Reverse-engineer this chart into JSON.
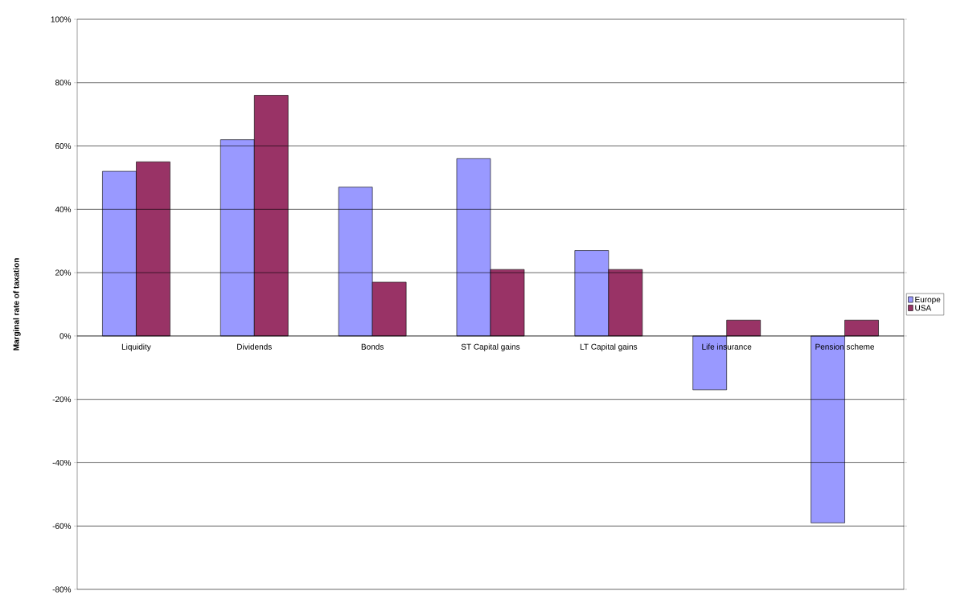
{
  "chart_data": {
    "type": "bar",
    "ylabel": "Marginal rate of taxation",
    "categories": [
      "Liquidity",
      "Dividends",
      "Bonds",
      "ST Capital gains",
      "LT Capital gains",
      "Life insurance",
      "Pension scheme"
    ],
    "series": [
      {
        "name": "Europe",
        "color": "#9999ff",
        "values": [
          52,
          62,
          47,
          56,
          27,
          -17,
          -59
        ]
      },
      {
        "name": "USA",
        "color": "#993366",
        "values": [
          55,
          76,
          17,
          21,
          21,
          5,
          5
        ]
      }
    ],
    "ylim": [
      -80,
      100
    ],
    "yticks": [
      {
        "value": -80,
        "label": "-80%"
      },
      {
        "value": -60,
        "label": "-60%"
      },
      {
        "value": -40,
        "label": "-40%"
      },
      {
        "value": -20,
        "label": "-20%"
      },
      {
        "value": 0,
        "label": "0%"
      },
      {
        "value": 20,
        "label": "20%"
      },
      {
        "value": 40,
        "label": "40%"
      },
      {
        "value": 60,
        "label": "60%"
      },
      {
        "value": 80,
        "label": "80%"
      },
      {
        "value": 100,
        "label": "100%"
      }
    ],
    "grid": "y",
    "legend": "right"
  }
}
